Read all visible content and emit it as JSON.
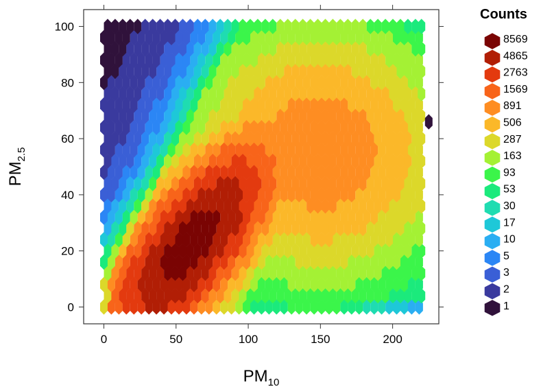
{
  "chart_data": {
    "type": "heatmap",
    "subtype": "hexbin",
    "x_axis": {
      "label_main": "PM",
      "label_sub": "10",
      "range": [
        -14,
        232
      ],
      "ticks": [
        0,
        50,
        100,
        150,
        200
      ]
    },
    "y_axis": {
      "label_main": "PM",
      "label_sub": "2.5",
      "range": [
        -6,
        106
      ],
      "ticks": [
        0,
        20,
        40,
        60,
        80,
        100
      ]
    },
    "legend": {
      "title": "Counts",
      "placement": "right",
      "levels": [
        {
          "label": "8569",
          "color": "#7a0403"
        },
        {
          "label": "4865",
          "color": "#b11e05"
        },
        {
          "label": "2763",
          "color": "#e33a0f"
        },
        {
          "label": "1569",
          "color": "#f8641a"
        },
        {
          "label": "891",
          "color": "#fe8d22"
        },
        {
          "label": "506",
          "color": "#fbb829"
        },
        {
          "label": "287",
          "color": "#dcd82a"
        },
        {
          "label": "163",
          "color": "#a4f134"
        },
        {
          "label": "93",
          "color": "#3bf54a"
        },
        {
          "label": "53",
          "color": "#1bea7c"
        },
        {
          "label": "30",
          "color": "#1fdcb1"
        },
        {
          "label": "17",
          "color": "#1ec8d8"
        },
        {
          "label": "10",
          "color": "#2aaef2"
        },
        {
          "label": "5",
          "color": "#2b86f5"
        },
        {
          "label": "3",
          "color": "#3a5fd6"
        },
        {
          "label": "2",
          "color": "#3a3a9e"
        },
        {
          "label": "1",
          "color": "#30123b"
        }
      ]
    },
    "density_model": {
      "description_of_levels": "count level index 0 (lowest) to 16 (highest)",
      "peak": [
        60,
        22
      ],
      "ridge_slope": 0.35,
      "x_extent": [
        0,
        220
      ],
      "y_extent": [
        0,
        100
      ]
    }
  }
}
